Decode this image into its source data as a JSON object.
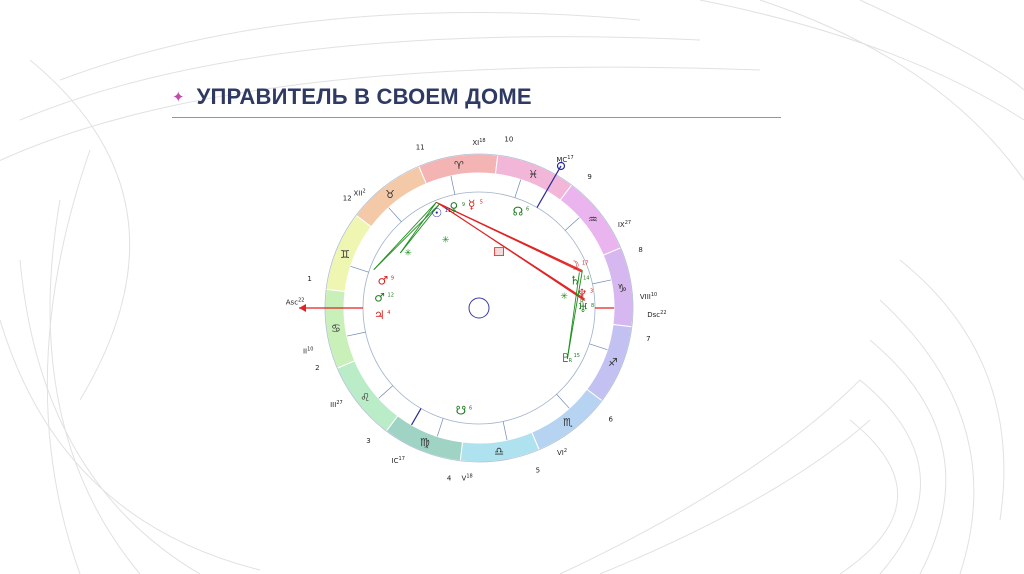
{
  "slide": {
    "title": "УПРАВИТЕЛЬ В СВОЕМ ДОМЕ",
    "sparkle": "✦",
    "colors": {
      "title": "#2f3a63",
      "sparkle": "#c34bb0",
      "rule": "#8a96b5"
    }
  },
  "natal_chart": {
    "signs": [
      {
        "glyph": "♉",
        "name": "taurus",
        "color": "#f4c9a8"
      },
      {
        "glyph": "♈",
        "name": "aries",
        "color": "#f4b4b4"
      },
      {
        "glyph": "♓",
        "name": "pisces",
        "color": "#f2b6d8"
      },
      {
        "glyph": "♒",
        "name": "aquarius",
        "color": "#eab4ee"
      },
      {
        "glyph": "♑",
        "name": "capricorn",
        "color": "#d7b7f0"
      },
      {
        "glyph": "♐",
        "name": "sagittarius",
        "color": "#c3c0f2"
      },
      {
        "glyph": "♏",
        "name": "scorpio",
        "color": "#b6d3f2"
      },
      {
        "glyph": "♎",
        "name": "libra",
        "color": "#aee2ef"
      },
      {
        "glyph": "♍",
        "name": "virgo",
        "color": "#9fd3c3"
      },
      {
        "glyph": "♌",
        "name": "leo",
        "color": "#b9ecc7"
      },
      {
        "glyph": "♋",
        "name": "cancer",
        "color": "#c9f0b9"
      },
      {
        "glyph": "♊",
        "name": "gemini",
        "color": "#eef6b2"
      }
    ],
    "house_numbers": [
      "11",
      "10",
      "9",
      "8",
      "7",
      "6",
      "5",
      "4",
      "3",
      "2",
      "1",
      "12"
    ],
    "cusp_labels": [
      {
        "text": "XII",
        "sup": "2"
      },
      {
        "text": "XI",
        "sup": "18"
      },
      {
        "text": "MC",
        "sup": "17"
      },
      {
        "text": "IX",
        "sup": "27"
      },
      {
        "text": "VIII",
        "sup": "10"
      },
      {
        "text": "Dsc",
        "sup": "22"
      },
      {
        "text": "VI",
        "sup": "2"
      },
      {
        "text": "V",
        "sup": "18"
      },
      {
        "text": "IC",
        "sup": "17"
      },
      {
        "text": "III",
        "sup": "27"
      },
      {
        "text": "II",
        "sup": "10"
      },
      {
        "text": "Asc",
        "sup": "22"
      }
    ],
    "planets": [
      {
        "glyph": "☉",
        "deg": "11",
        "color": "#2a2aa0",
        "name": "sun"
      },
      {
        "glyph": "♀",
        "deg": "9",
        "color": "#1f7a1f",
        "name": "venus"
      },
      {
        "glyph": "☿",
        "deg": "5",
        "color": "#d42020",
        "name": "mercury"
      },
      {
        "glyph": "☊",
        "deg": "6",
        "color": "#1f7a1f",
        "name": "north-node"
      },
      {
        "glyph": "☽",
        "deg": "17",
        "color": "#d42020",
        "name": "moon"
      },
      {
        "glyph": "♄",
        "deg": "14",
        "color": "#1f7a1f",
        "name": "saturn"
      },
      {
        "glyph": "♆",
        "deg": "3",
        "color": "#d42020",
        "name": "neptune"
      },
      {
        "glyph": "♅",
        "deg": "8",
        "color": "#1f7a1f",
        "name": "uranus"
      },
      {
        "glyph": "♇",
        "deg": "15",
        "color": "#1f7a1f",
        "name": "pluto"
      },
      {
        "glyph": "♂",
        "deg": "9",
        "color": "#d42020",
        "name": "mars"
      },
      {
        "glyph": "☋",
        "deg": "6",
        "color": "#1f7a1f",
        "name": "south-node"
      },
      {
        "glyph": "♂",
        "deg": "12",
        "color": "#1f7a1f",
        "name": "mars-2"
      },
      {
        "glyph": "♃",
        "deg": "4",
        "color": "#d42020",
        "name": "jupiter"
      }
    ],
    "retro_mark": "R",
    "aspect_colors": {
      "red": "#e12222",
      "green": "#1e8f1e"
    }
  }
}
